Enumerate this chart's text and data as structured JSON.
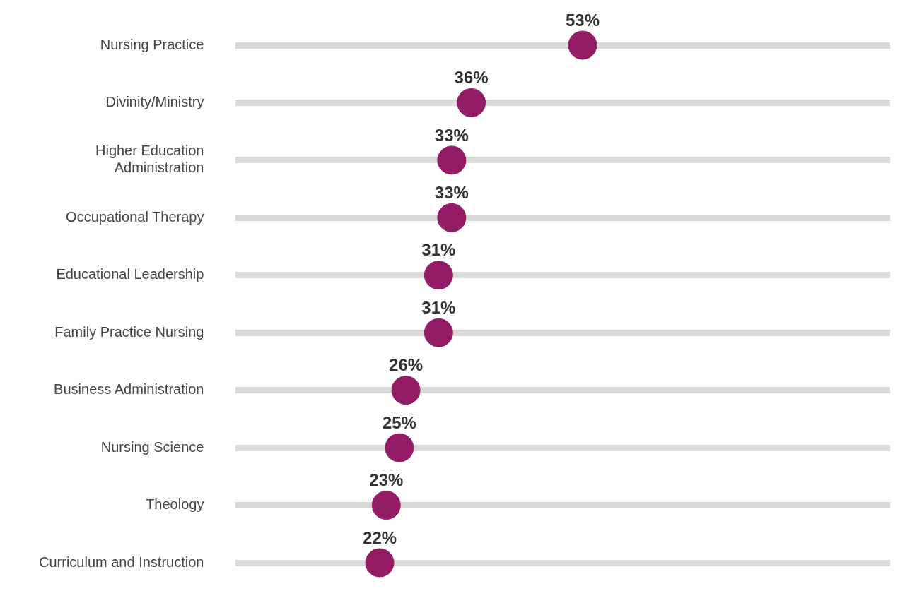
{
  "chart_data": {
    "type": "scatter",
    "orientation": "horizontal",
    "categories": [
      "Nursing Practice",
      "Divinity/Ministry",
      "Higher Education Administration",
      "Occupational Therapy",
      "Educational Leadership",
      "Family Practice Nursing",
      "Business Administration",
      "Nursing Science",
      "Theology",
      "Curriculum and Instruction"
    ],
    "values": [
      53,
      36,
      33,
      33,
      31,
      31,
      26,
      25,
      23,
      22
    ],
    "value_labels": [
      "53%",
      "36%",
      "33%",
      "33%",
      "31%",
      "31%",
      "26%",
      "25%",
      "23%",
      "22%"
    ],
    "color": "#941c66",
    "marker": "circle",
    "xlim": [
      0,
      100
    ],
    "grid": "y",
    "tick_labels": "y",
    "legend": false
  }
}
